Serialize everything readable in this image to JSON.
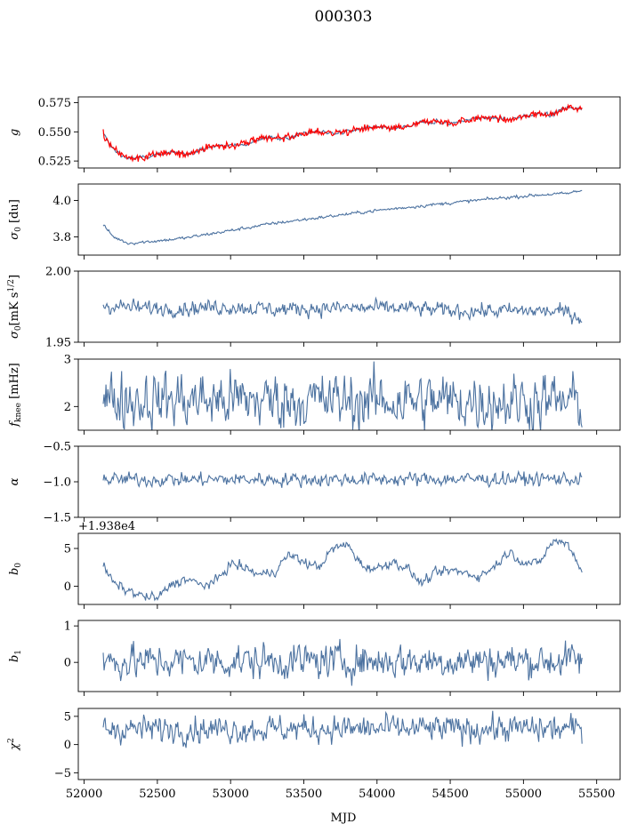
{
  "figure": {
    "title": "000303",
    "xlabel": "MJD",
    "xlim": [
      51960,
      55660
    ],
    "xticks": [
      52000,
      52500,
      53000,
      53500,
      54000,
      54500,
      55000,
      55500
    ]
  },
  "colors": {
    "series": "#4c72a0",
    "highlight": "#ff0000",
    "axes": "#000000"
  },
  "chart_data": [
    {
      "type": "line",
      "ylabel": "g",
      "ylabel_math": "italic",
      "ylim": [
        0.519,
        0.58
      ],
      "yticks": [
        0.525,
        0.55,
        0.575
      ],
      "ytick_labels": [
        "0.525",
        "0.550",
        "0.575"
      ],
      "x": [
        52130,
        52200,
        52300,
        52400,
        52500,
        52600,
        52700,
        52800,
        52900,
        53000,
        53100,
        53200,
        53300,
        53400,
        53500,
        53600,
        53700,
        53800,
        53900,
        54000,
        54100,
        54200,
        54300,
        54400,
        54500,
        54600,
        54700,
        54800,
        54900,
        55000,
        55100,
        55200,
        55300,
        55400
      ],
      "values": [
        0.548,
        0.535,
        0.527,
        0.528,
        0.531,
        0.532,
        0.531,
        0.535,
        0.538,
        0.538,
        0.54,
        0.544,
        0.545,
        0.545,
        0.549,
        0.55,
        0.549,
        0.55,
        0.553,
        0.554,
        0.553,
        0.554,
        0.558,
        0.559,
        0.557,
        0.56,
        0.562,
        0.562,
        0.56,
        0.563,
        0.566,
        0.565,
        0.571,
        0.57
      ],
      "noise": 0.0008,
      "overlay": {
        "color": "#ff0000",
        "noise": 0.0015
      }
    },
    {
      "type": "line",
      "ylabel": "σ0 [du]",
      "ylim": [
        3.7,
        4.09
      ],
      "yticks": [
        3.8,
        4.0
      ],
      "ytick_labels": [
        "3.8",
        "4.0"
      ],
      "x": [
        52130,
        52200,
        52300,
        52500,
        52700,
        53000,
        53300,
        53600,
        54000,
        54400,
        54800,
        55100,
        55300,
        55400
      ],
      "values": [
        3.865,
        3.8,
        3.765,
        3.778,
        3.795,
        3.835,
        3.875,
        3.905,
        3.945,
        3.978,
        4.01,
        4.03,
        4.038,
        4.055
      ],
      "noise": 0.004
    },
    {
      "type": "line",
      "ylabel": "σ0[mK s^1/2]",
      "ylim": [
        1.95,
        2.0
      ],
      "yticks": [
        1.95,
        2.0
      ],
      "ytick_labels": [
        "1.95",
        "2.00"
      ],
      "x": [
        52130,
        52400,
        52700,
        53000,
        53300,
        53600,
        53900,
        54200,
        54500,
        54800,
        55100,
        55300,
        55400
      ],
      "values": [
        1.976,
        1.974,
        1.974,
        1.975,
        1.973,
        1.974,
        1.974,
        1.974,
        1.972,
        1.972,
        1.972,
        1.971,
        1.967
      ],
      "noise": 0.0025
    },
    {
      "type": "line",
      "ylabel": "f_knee [mHz]",
      "ylim": [
        1.5,
        3.0
      ],
      "yticks": [
        2,
        3
      ],
      "ytick_labels": [
        "2",
        "3"
      ],
      "x": [
        52130,
        55400
      ],
      "values": [
        2.15,
        2.1
      ],
      "noise": 0.28
    },
    {
      "type": "line",
      "ylabel": "α",
      "ylim": [
        -1.5,
        -0.5
      ],
      "yticks": [
        -1.5,
        -1.0,
        -0.5
      ],
      "ytick_labels": [
        "−1.5",
        "−1.0",
        "−0.5"
      ],
      "x": [
        52130,
        55400
      ],
      "values": [
        -0.97,
        -0.96
      ],
      "noise": 0.045
    },
    {
      "type": "line",
      "ylabel": "b0",
      "offset_text": "+1.938e4",
      "ylim": [
        -2.4,
        7.0
      ],
      "yticks": [
        0,
        5
      ],
      "ytick_labels": [
        "0",
        "5"
      ],
      "x": [
        52130,
        52200,
        52300,
        52400,
        52500,
        52600,
        52700,
        52800,
        52900,
        53000,
        53100,
        53200,
        53300,
        53400,
        53500,
        53600,
        53700,
        53800,
        53900,
        54000,
        54100,
        54200,
        54300,
        54400,
        54500,
        54600,
        54700,
        54800,
        54900,
        55000,
        55100,
        55200,
        55300,
        55400
      ],
      "values": [
        2.8,
        0.4,
        -0.6,
        -1.3,
        -1.6,
        0.3,
        1.0,
        0.1,
        0.6,
        3.0,
        2.4,
        1.5,
        2.0,
        4.2,
        3.2,
        2.5,
        5.0,
        5.5,
        2.7,
        2.3,
        3.3,
        2.5,
        0.4,
        1.7,
        2.1,
        1.8,
        1.3,
        2.6,
        4.6,
        3.2,
        2.9,
        5.9,
        5.8,
        2.0
      ],
      "noise": 0.3
    },
    {
      "type": "line",
      "ylabel": "b1",
      "ylim": [
        -0.8,
        1.15
      ],
      "yticks": [
        0,
        1
      ],
      "ytick_labels": [
        "0",
        "1"
      ],
      "x": [
        52130,
        55400
      ],
      "values": [
        0.02,
        0.05
      ],
      "noise": 0.22
    },
    {
      "type": "line",
      "ylabel": "χ2",
      "ylim": [
        -6.2,
        6.4
      ],
      "yticks": [
        -5,
        0,
        5
      ],
      "ytick_labels": [
        "−5",
        "0",
        "5"
      ],
      "x": [
        52130,
        55400
      ],
      "values": [
        2.8,
        2.8
      ],
      "noise": 1.1
    }
  ]
}
